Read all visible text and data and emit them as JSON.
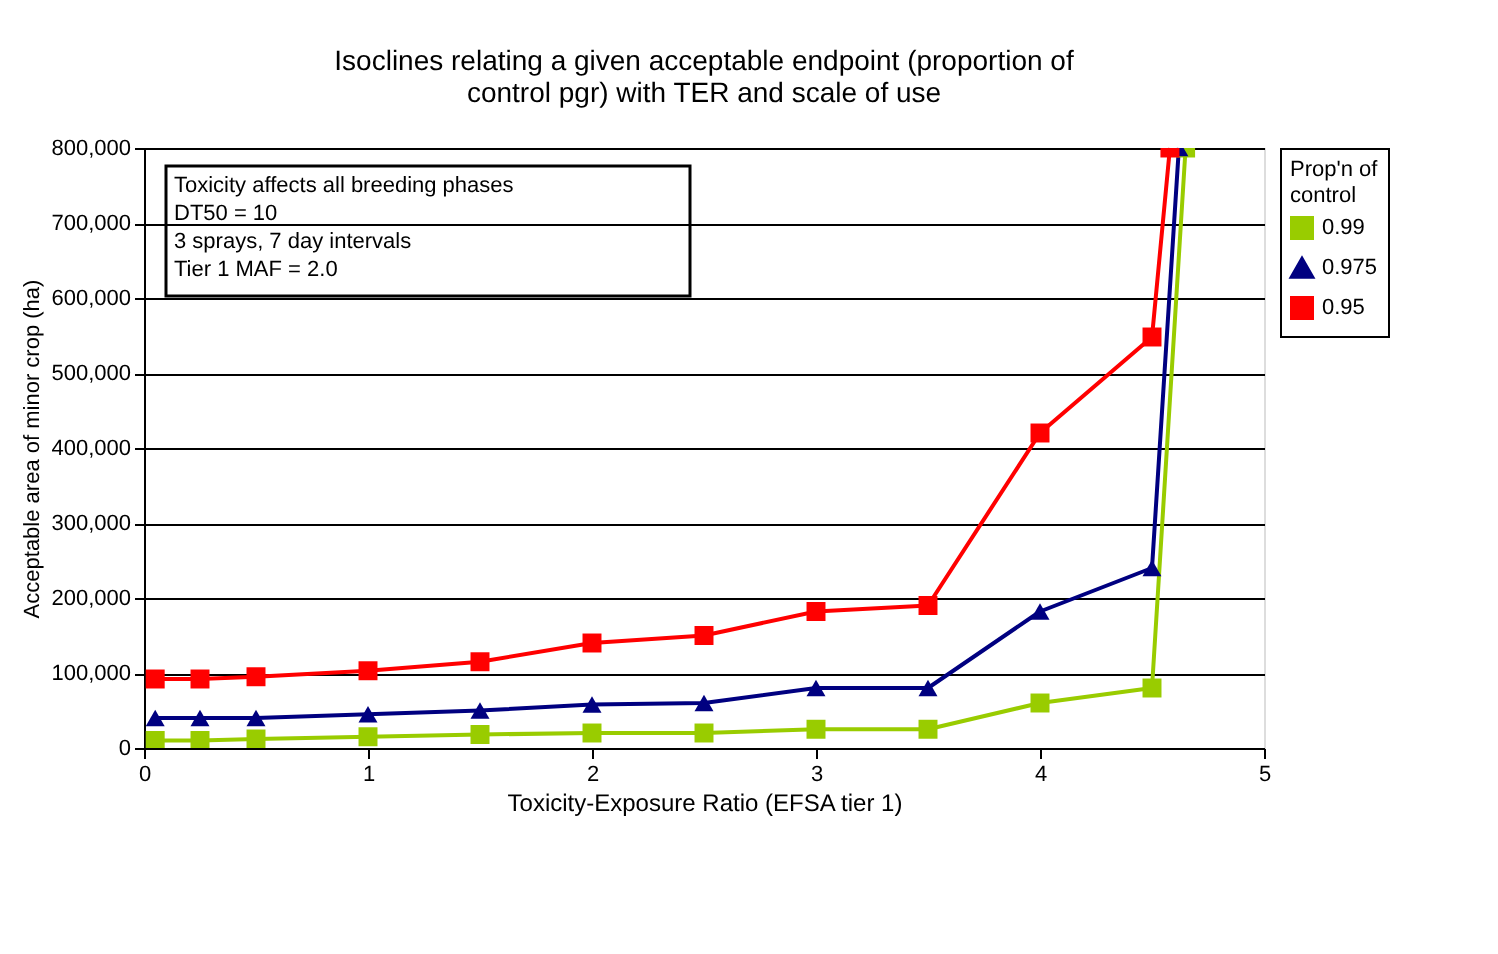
{
  "chart_data": {
    "type": "line",
    "title": [
      "Isoclines relating a given acceptable endpoint (proportion of",
      "control pgr) with TER and scale of use"
    ],
    "xlabel": "Toxicity-Exposure Ratio (EFSA tier 1)",
    "ylabel": "Acceptable area of minor crop (ha)",
    "legend_title": "Prop'n of control",
    "legend": "right",
    "grid": "y",
    "xlim": [
      0,
      5
    ],
    "xticks": [
      0,
      1,
      2,
      3,
      4,
      5
    ],
    "ylim": [
      0,
      800000
    ],
    "yticks": [
      0,
      {
        "value": 100000,
        "label": "100,000"
      },
      {
        "value": 200000,
        "label": "200,000"
      },
      {
        "value": 300000,
        "label": "300,000"
      },
      {
        "value": 400000,
        "label": "400,000"
      },
      {
        "value": 500000,
        "label": "500,000"
      },
      {
        "value": 600000,
        "label": "600,000"
      },
      {
        "value": 700000,
        "label": "700,000"
      },
      {
        "value": 800000,
        "label": "800,000"
      }
    ],
    "annotations": [
      "Toxicity affects all breeding phases",
      "DT50 = 10",
      "3 sprays, 7 day intervals",
      "Tier 1 MAF = 2.0"
    ],
    "series": [
      {
        "name": "0.99",
        "color": "#99cc00",
        "marker": "square",
        "x": [
          0.05,
          0.25,
          0.5,
          1,
          1.5,
          2,
          2.5,
          3,
          3.5,
          4,
          4.5,
          4.65
        ],
        "values": [
          10000,
          10000,
          12000,
          15000,
          18000,
          20000,
          20000,
          25000,
          25000,
          60000,
          80000,
          800000
        ]
      },
      {
        "name": "0.975",
        "color": "#000080",
        "marker": "triangle",
        "x": [
          0.05,
          0.25,
          0.5,
          1,
          1.5,
          2,
          2.5,
          3,
          3.5,
          4,
          4.5,
          4.62
        ],
        "values": [
          40000,
          40000,
          40000,
          45000,
          50000,
          58000,
          60000,
          80000,
          80000,
          182000,
          240000,
          800000
        ]
      },
      {
        "name": "0.95",
        "color": "#ff0000",
        "marker": "square",
        "x": [
          0.05,
          0.25,
          0.5,
          1,
          1.5,
          2,
          2.5,
          3,
          3.5,
          4,
          4.5,
          4.58
        ],
        "values": [
          92000,
          92000,
          95000,
          103000,
          115000,
          140000,
          150000,
          182000,
          190000,
          420000,
          548000,
          800000
        ]
      }
    ]
  }
}
